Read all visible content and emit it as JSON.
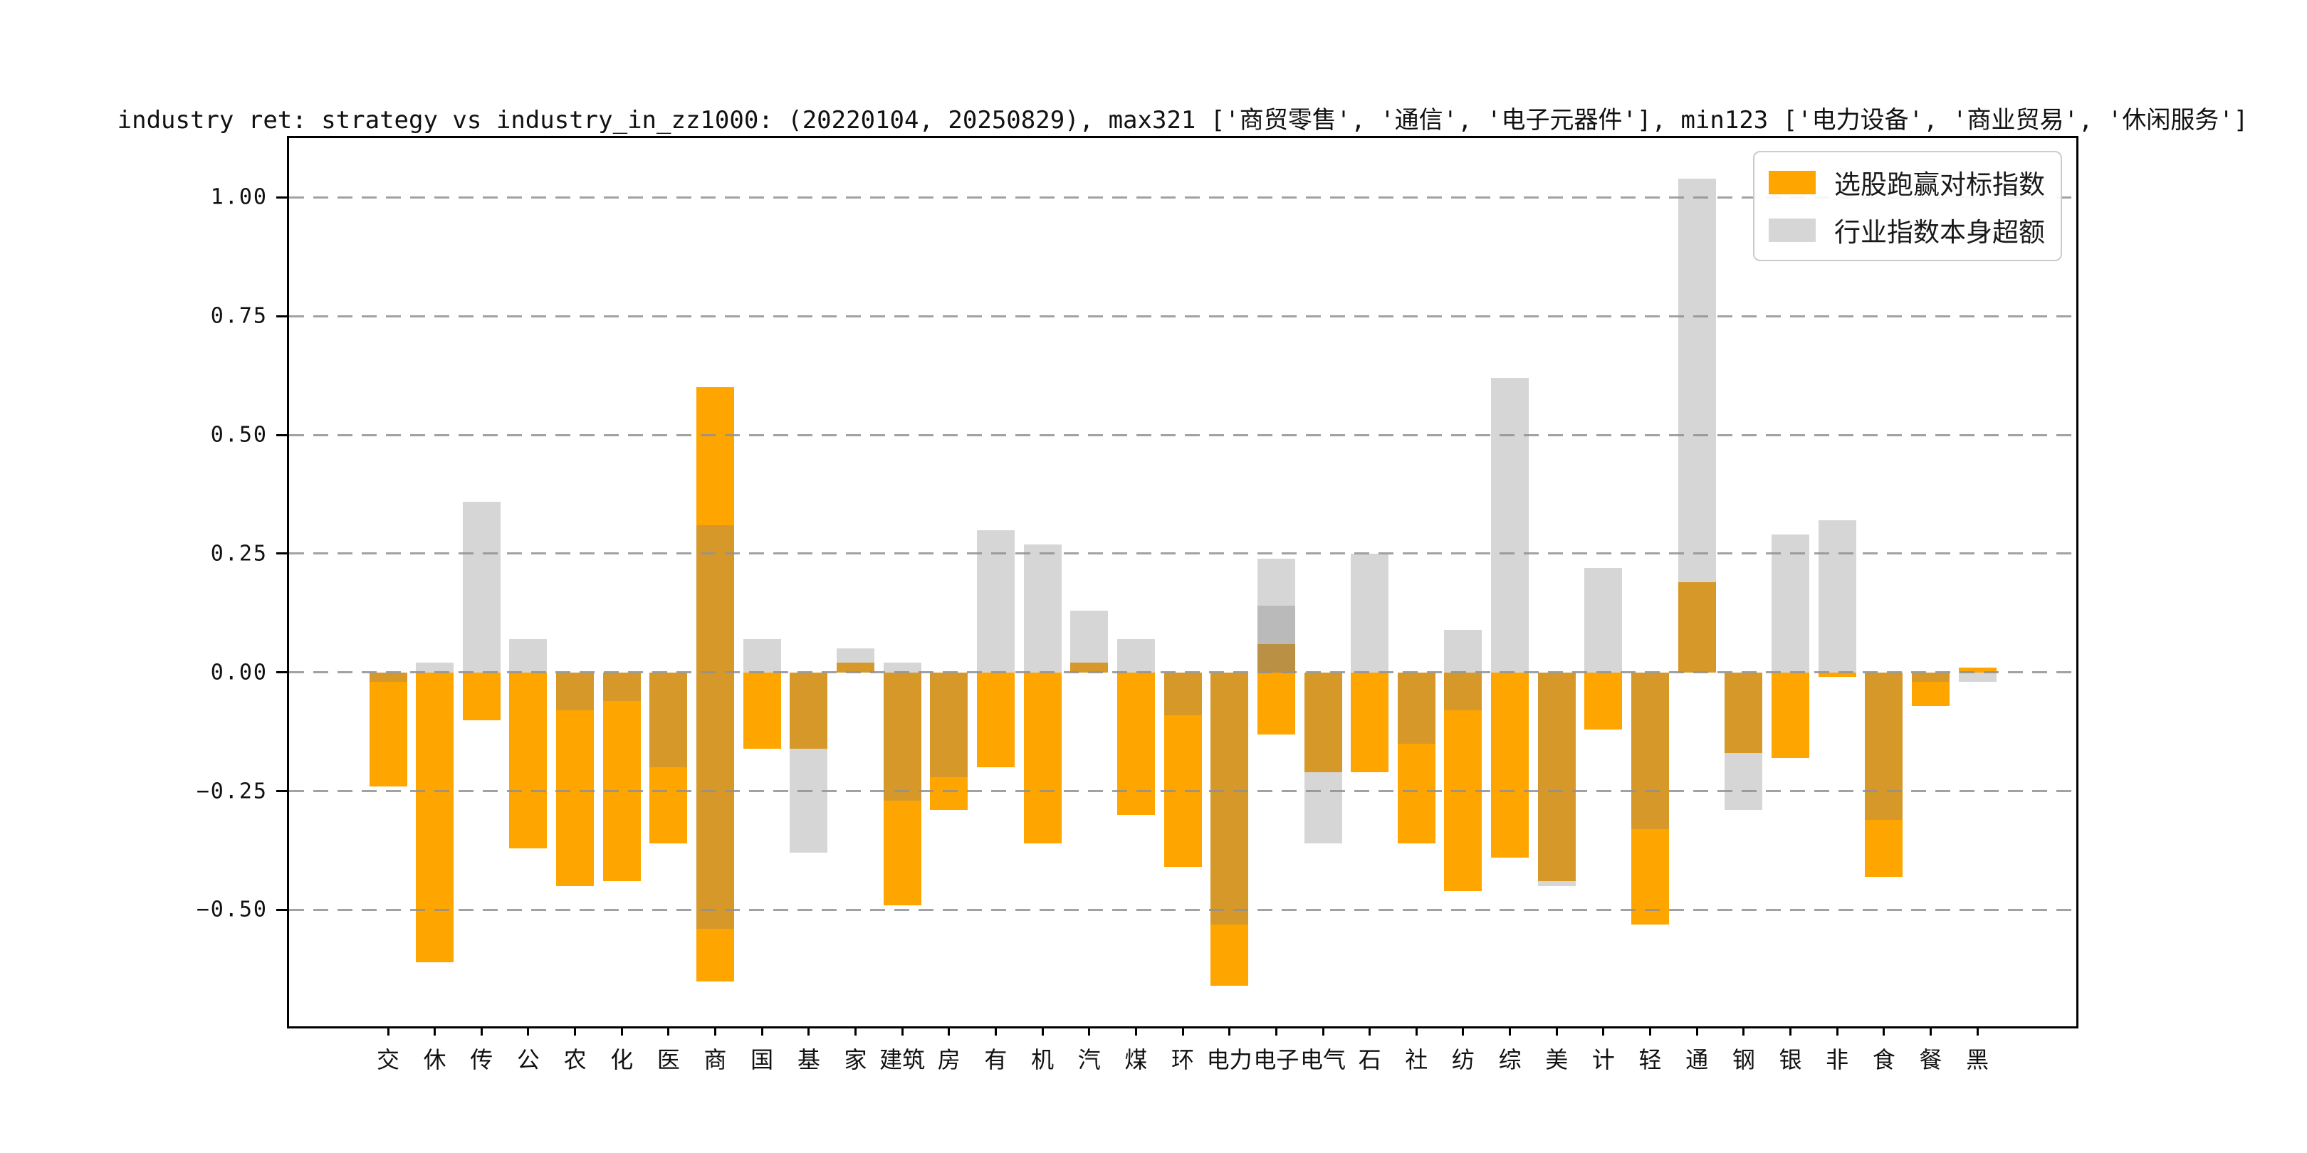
{
  "chart_data": {
    "type": "bar",
    "title": "industry ret: strategy vs industry_in_zz1000: (20220104, 20250829), max321 ['商贸零售', '通信', '电子元器件'], min123 ['电力设备', '商业贸易', '休闲服务']",
    "categories": [
      "交",
      "休",
      "传",
      "公",
      "农",
      "化",
      "医",
      "商",
      "国",
      "基",
      "家",
      "建筑",
      "房",
      "有",
      "机",
      "汽",
      "煤",
      "环",
      "电力",
      "电子",
      "电气",
      "石",
      "社",
      "纺",
      "综",
      "美",
      "计",
      "轻",
      "通",
      "钢",
      "银",
      "非",
      "食",
      "餐",
      "黑"
    ],
    "series": [
      {
        "name": "选股跑赢对标指数",
        "color": "#ffa500",
        "style": "solid",
        "segments": [
          [
            [
              -0.24,
              0
            ]
          ],
          [
            [
              -0.61,
              0
            ]
          ],
          [
            [
              -0.1,
              0
            ]
          ],
          [
            [
              -0.37,
              0
            ]
          ],
          [
            [
              -0.45,
              0
            ]
          ],
          [
            [
              -0.44,
              0
            ]
          ],
          [
            [
              -0.36,
              0
            ]
          ],
          [
            [
              0,
              0.6
            ],
            [
              -0.65,
              0
            ]
          ],
          [
            [
              -0.16,
              0
            ]
          ],
          [
            [
              -0.16,
              0
            ]
          ],
          [
            [
              0,
              0.02
            ]
          ],
          [
            [
              -0.49,
              0
            ]
          ],
          [
            [
              -0.29,
              0
            ]
          ],
          [
            [
              -0.2,
              0
            ]
          ],
          [
            [
              -0.36,
              0
            ]
          ],
          [
            [
              0,
              0.02
            ]
          ],
          [
            [
              -0.3,
              0
            ]
          ],
          [
            [
              -0.41,
              0
            ]
          ],
          [
            [
              -0.66,
              0
            ]
          ],
          [
            [
              0,
              0.06
            ],
            [
              -0.13,
              0
            ]
          ],
          [
            [
              -0.21,
              0
            ]
          ],
          [
            [
              -0.21,
              0
            ]
          ],
          [
            [
              -0.36,
              0
            ]
          ],
          [
            [
              -0.46,
              0
            ]
          ],
          [
            [
              -0.39,
              0
            ]
          ],
          [
            [
              -0.44,
              0
            ]
          ],
          [
            [
              -0.12,
              0
            ]
          ],
          [
            [
              -0.53,
              0
            ]
          ],
          [
            [
              0,
              0.19
            ]
          ],
          [
            [
              -0.17,
              0
            ]
          ],
          [
            [
              -0.18,
              0
            ]
          ],
          [
            [
              -0.01,
              0
            ]
          ],
          [
            [
              -0.43,
              0
            ]
          ],
          [
            [
              -0.07,
              0
            ]
          ],
          [
            [
              0,
              0.01
            ]
          ]
        ]
      },
      {
        "name": "行业指数本身超额",
        "color": "#d6d6d6",
        "style": "translucent-gray-overlay",
        "overlay_rgba": "rgba(128,128,128,0.32)",
        "segments": [
          [
            [
              -0.02,
              0
            ]
          ],
          [
            [
              0,
              0.02
            ]
          ],
          [
            [
              0,
              0.36
            ]
          ],
          [
            [
              0,
              0.07
            ]
          ],
          [
            [
              -0.08,
              0
            ]
          ],
          [
            [
              -0.06,
              0
            ]
          ],
          [
            [
              -0.2,
              0
            ]
          ],
          [
            [
              0,
              0.31
            ],
            [
              -0.54,
              0
            ]
          ],
          [
            [
              0,
              0.07
            ]
          ],
          [
            [
              -0.38,
              0
            ]
          ],
          [
            [
              0,
              0.05
            ]
          ],
          [
            [
              0,
              0.02
            ],
            [
              -0.27,
              0
            ]
          ],
          [
            [
              -0.22,
              0
            ]
          ],
          [
            [
              0,
              0.3
            ]
          ],
          [
            [
              0,
              0.27
            ]
          ],
          [
            [
              0,
              0.13
            ]
          ],
          [
            [
              0,
              0.07
            ]
          ],
          [
            [
              -0.09,
              0
            ]
          ],
          [
            [
              -0.53,
              0
            ]
          ],
          [
            [
              0,
              0.24
            ],
            [
              0,
              0.14
            ]
          ],
          [
            [
              -0.36,
              0
            ]
          ],
          [
            [
              0,
              0.25
            ]
          ],
          [
            [
              -0.15,
              0
            ]
          ],
          [
            [
              0,
              0.09
            ],
            [
              -0.08,
              0
            ]
          ],
          [
            [
              0,
              0.62
            ]
          ],
          [
            [
              -0.45,
              0
            ]
          ],
          [
            [
              0,
              0.22
            ]
          ],
          [
            [
              -0.33,
              0
            ]
          ],
          [
            [
              0,
              1.04
            ]
          ],
          [
            [
              -0.29,
              0
            ]
          ],
          [
            [
              0,
              0.29
            ]
          ],
          [
            [
              0,
              0.32
            ]
          ],
          [
            [
              -0.31,
              0
            ]
          ],
          [
            [
              -0.02,
              0
            ]
          ],
          [
            [
              -0.02,
              0
            ]
          ]
        ]
      }
    ],
    "ylim": [
      -0.745,
      1.125
    ],
    "yticks": [
      {
        "value": 1.0,
        "label": "1.00"
      },
      {
        "value": 0.75,
        "label": "0.75"
      },
      {
        "value": 0.5,
        "label": "0.50"
      },
      {
        "value": 0.25,
        "label": "0.25"
      },
      {
        "value": 0.0,
        "label": "0.00"
      },
      {
        "value": -0.25,
        "label": "−0.25"
      },
      {
        "value": -0.5,
        "label": "−0.50"
      }
    ],
    "grid": {
      "axis": "y",
      "style": "dashed",
      "color": "#919191",
      "on_top": true
    },
    "legend": {
      "position": "upper right",
      "entries": [
        {
          "label": "选股跑赢对标指数",
          "color": "#ffa500"
        },
        {
          "label": "行业指数本身超额",
          "color": "#d6d6d6"
        }
      ]
    }
  }
}
